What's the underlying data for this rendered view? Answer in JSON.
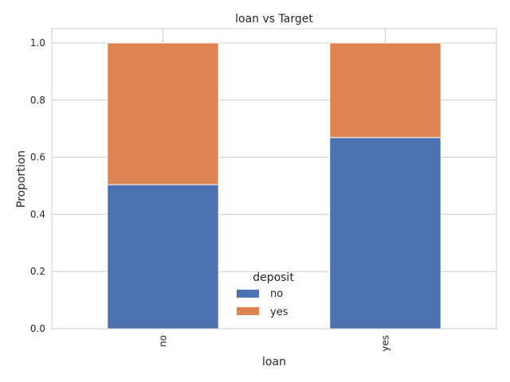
{
  "chart_data": {
    "type": "bar",
    "stacked": true,
    "title": "loan vs Target",
    "xlabel": "loan",
    "ylabel": "Proportion",
    "categories": [
      "no",
      "yes"
    ],
    "series": [
      {
        "name": "no",
        "values": [
          0.504,
          0.669
        ],
        "color": "#4c72b0"
      },
      {
        "name": "yes",
        "values": [
          0.496,
          0.331
        ],
        "color": "#dd8452"
      }
    ],
    "ylim": [
      0,
      1.05
    ],
    "yticks": [
      "0.0",
      "0.2",
      "0.4",
      "0.6",
      "0.8",
      "1.0"
    ],
    "grid": true,
    "legend": {
      "title": "deposit",
      "placement": "lower-center"
    }
  }
}
